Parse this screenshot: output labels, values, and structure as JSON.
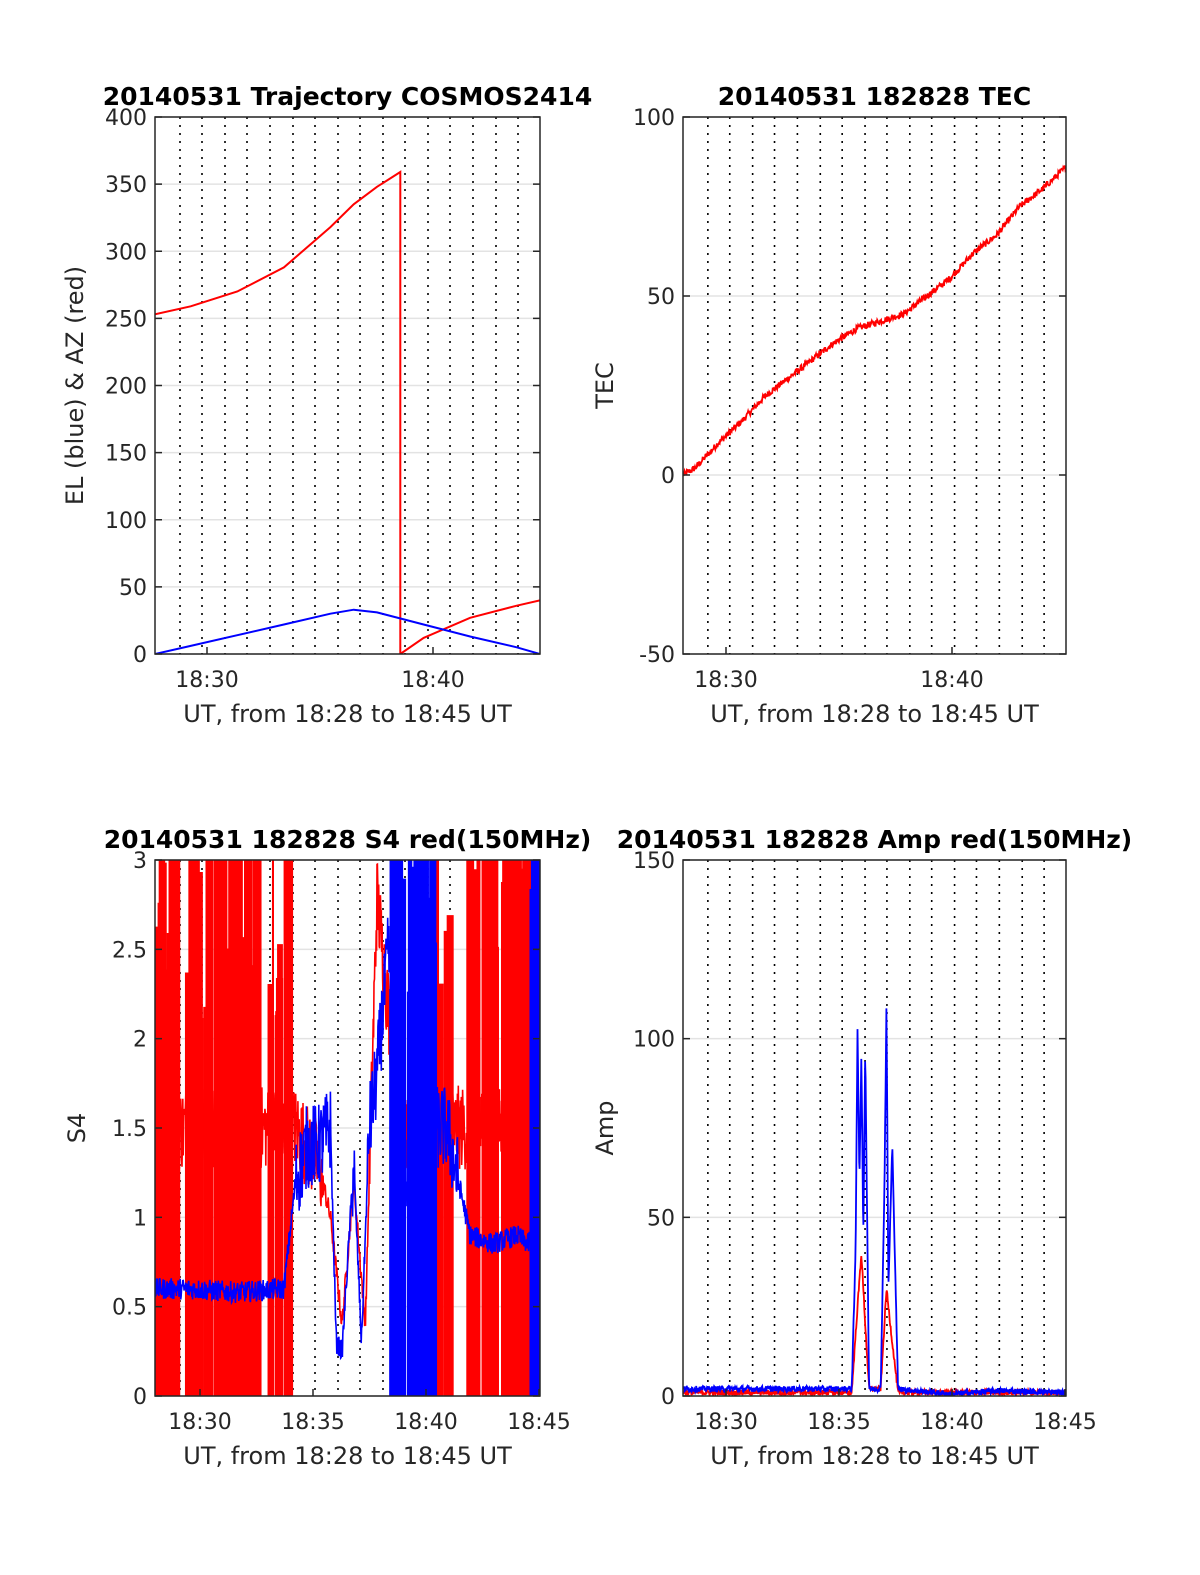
{
  "figure": {
    "background": "#ffffff"
  },
  "colors": {
    "red": "#ff0000",
    "blue": "#0000ff",
    "grid": "#e3e3e3",
    "dotgrid": "#000000",
    "axis": "#262626"
  },
  "chart_data": [
    {
      "id": "traj",
      "type": "line",
      "title": "20140531 Trajectory COSMOS2414",
      "xlabel": "UT, from 18:28 to 18:45 UT",
      "ylabel": "EL (blue) & AZ (red)",
      "xlim": [
        "18:28:28",
        "18:45:00"
      ],
      "ylim": [
        0,
        400
      ],
      "yticks": [
        0,
        50,
        100,
        150,
        200,
        250,
        300,
        350,
        400
      ],
      "xticks": [
        "18:30",
        "18:40"
      ],
      "grid": true,
      "series": [
        {
          "color": "#ff0000",
          "x": [
            "18:28:28",
            "18:30",
            "18:32",
            "18:34",
            "18:36",
            "18:37",
            "18:38",
            "18:39",
            "18:39:00",
            "18:40",
            "18:42",
            "18:44",
            "18:45"
          ],
          "values": [
            253,
            259,
            270,
            288,
            318,
            335,
            348,
            359,
            0,
            12,
            27,
            36,
            40
          ]
        },
        {
          "color": "#0000ff",
          "x": [
            "18:28:28",
            "18:30",
            "18:32",
            "18:34",
            "18:36",
            "18:37",
            "18:38",
            "18:40",
            "18:42",
            "18:44",
            "18:45"
          ],
          "values": [
            0,
            6,
            14,
            22,
            30,
            33,
            31,
            22,
            13,
            5,
            0
          ]
        }
      ]
    },
    {
      "id": "tec",
      "type": "line",
      "title": "20140531 182828 TEC",
      "xlabel": "UT, from 18:28 to 18:45 UT",
      "ylabel": "TEC",
      "xlim": [
        "18:28:28",
        "18:45:00"
      ],
      "ylim": [
        -50,
        100
      ],
      "yticks": [
        -50,
        0,
        50,
        100
      ],
      "xticks": [
        "18:30",
        "18:40"
      ],
      "grid": true,
      "series": [
        {
          "color": "#ff0000",
          "x": [
            "18:28:28",
            "18:29",
            "18:30",
            "18:31",
            "18:32",
            "18:33",
            "18:34",
            "18:35",
            "18:36",
            "18:37",
            "18:38",
            "18:39",
            "18:40",
            "18:41",
            "18:42",
            "18:43",
            "18:44",
            "18:45"
          ],
          "values": [
            0,
            2,
            9,
            15,
            22,
            27,
            32,
            37,
            41,
            43,
            45,
            50,
            55,
            62,
            67,
            75,
            80,
            86
          ]
        }
      ]
    },
    {
      "id": "s4",
      "type": "line",
      "title": "20140531 182828 S4 red(150MHz)",
      "xlabel": "UT, from 18:28 to 18:45 UT",
      "ylabel": "S4",
      "xlim": [
        "18:28:28",
        "18:45:00"
      ],
      "ylim": [
        0,
        3
      ],
      "yticks": [
        0,
        0.5,
        1,
        1.5,
        2,
        2.5,
        3
      ],
      "xticks": [
        "18:30",
        "18:35",
        "18:40",
        "18:45"
      ],
      "grid": true,
      "series": [
        {
          "color": "#ff0000",
          "x": [
            "18:28:28",
            "18:30",
            "18:32",
            "18:34",
            "18:34:30",
            "18:35",
            "18:35:30",
            "18:36",
            "18:36:30",
            "18:37",
            "18:37:30",
            "18:38",
            "18:39",
            "18:40",
            "18:41",
            "18:42",
            "18:43",
            "18:44",
            "18:45"
          ],
          "values": [
            1.5,
            1.5,
            1.5,
            1.5,
            1.5,
            1.4,
            1.3,
            1.0,
            0.4,
            1.2,
            0.4,
            2.8,
            1.5,
            1.5,
            1.5,
            1.5,
            1.5,
            1.5,
            1.5
          ]
        },
        {
          "color": "#0000ff",
          "x": [
            "18:28:28",
            "18:30",
            "18:32",
            "18:34",
            "18:34:30",
            "18:35",
            "18:35:30",
            "18:36",
            "18:36:15",
            "18:36:30",
            "18:37",
            "18:37:20",
            "18:37:40",
            "18:38",
            "18:38:30",
            "18:39",
            "18:40",
            "18:41",
            "18:42",
            "18:43",
            "18:44",
            "18:44:30",
            "18:45"
          ],
          "values": [
            0.6,
            0.6,
            0.58,
            0.6,
            1.2,
            1.4,
            1.4,
            1.5,
            0.3,
            0.25,
            1.3,
            0.3,
            1.5,
            1.8,
            2.5,
            1.2,
            1.5,
            1.5,
            0.9,
            0.85,
            0.9,
            0.85,
            1.2
          ]
        }
      ]
    },
    {
      "id": "amp",
      "type": "line",
      "title": "20140531 182828 Amp red(150MHz)",
      "xlabel": "UT, from 18:28 to 18:45 UT",
      "ylabel": "Amp",
      "xlim": [
        "18:28:28",
        "18:45:00"
      ],
      "ylim": [
        0,
        150
      ],
      "yticks": [
        0,
        50,
        100,
        150
      ],
      "xticks": [
        "18:30",
        "18:35",
        "18:40",
        "18:45"
      ],
      "grid": true,
      "series": [
        {
          "color": "#ff0000",
          "x": [
            "18:28:28",
            "18:35:45",
            "18:36",
            "18:36:10",
            "18:36:20",
            "18:36:30",
            "18:37",
            "18:37:15",
            "18:37:30",
            "18:37:45",
            "18:45"
          ],
          "values": [
            1,
            1,
            25,
            40,
            20,
            2,
            2,
            30,
            15,
            1,
            1
          ]
        },
        {
          "color": "#0000ff",
          "x": [
            "18:28:28",
            "18:30",
            "18:32",
            "18:34",
            "18:35:45",
            "18:35:55",
            "18:36",
            "18:36:05",
            "18:36:10",
            "18:36:15",
            "18:36:20",
            "18:36:30",
            "18:37",
            "18:37:10",
            "18:37:15",
            "18:37:20",
            "18:37:30",
            "18:37:45",
            "18:40",
            "18:42",
            "18:45"
          ],
          "values": [
            2,
            2,
            2,
            2,
            2,
            40,
            104,
            60,
            95,
            45,
            97,
            2,
            2,
            60,
            110,
            30,
            70,
            2,
            0.5,
            1.5,
            1
          ]
        }
      ]
    }
  ]
}
